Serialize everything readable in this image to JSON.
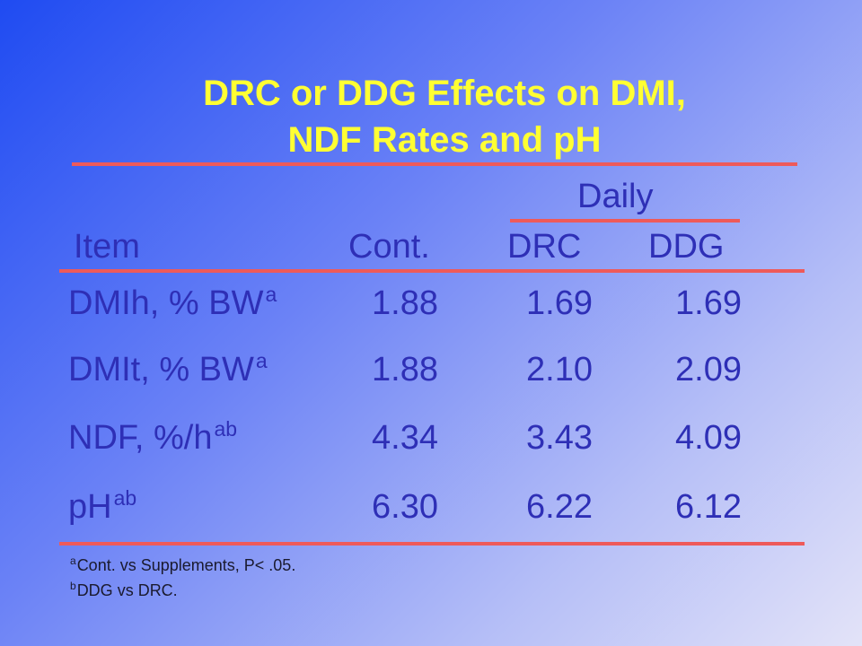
{
  "title": {
    "line1": "DRC or DDG Effects on DMI,",
    "line2": "NDF Rates and pH"
  },
  "table": {
    "group_header": "Daily",
    "headers": {
      "item": "Item",
      "cont": "Cont.",
      "drc": "DRC",
      "ddg": "DDG"
    },
    "rows": [
      {
        "label": "DMIh, % BW",
        "sup": "a",
        "cont": "1.88",
        "drc": "1.69",
        "ddg": "1.69"
      },
      {
        "label": "DMIt, % BW",
        "sup": "a",
        "cont": "1.88",
        "drc": "2.10",
        "ddg": "2.09"
      },
      {
        "label": "NDF, %/h",
        "sup": "ab",
        "cont": "4.34",
        "drc": "3.43",
        "ddg": "4.09"
      },
      {
        "label": "pH",
        "sup": "ab",
        "cont": "6.30",
        "drc": "6.22",
        "ddg": "6.12"
      }
    ]
  },
  "footnotes": [
    {
      "marker": "a",
      "text": "Cont. vs Supplements,  P< .05."
    },
    {
      "marker": "b",
      "text": "DDG vs DRC."
    }
  ],
  "colors": {
    "title": "#ffff33",
    "text": "#2e2fb6",
    "rule": "#ee5a5a"
  }
}
